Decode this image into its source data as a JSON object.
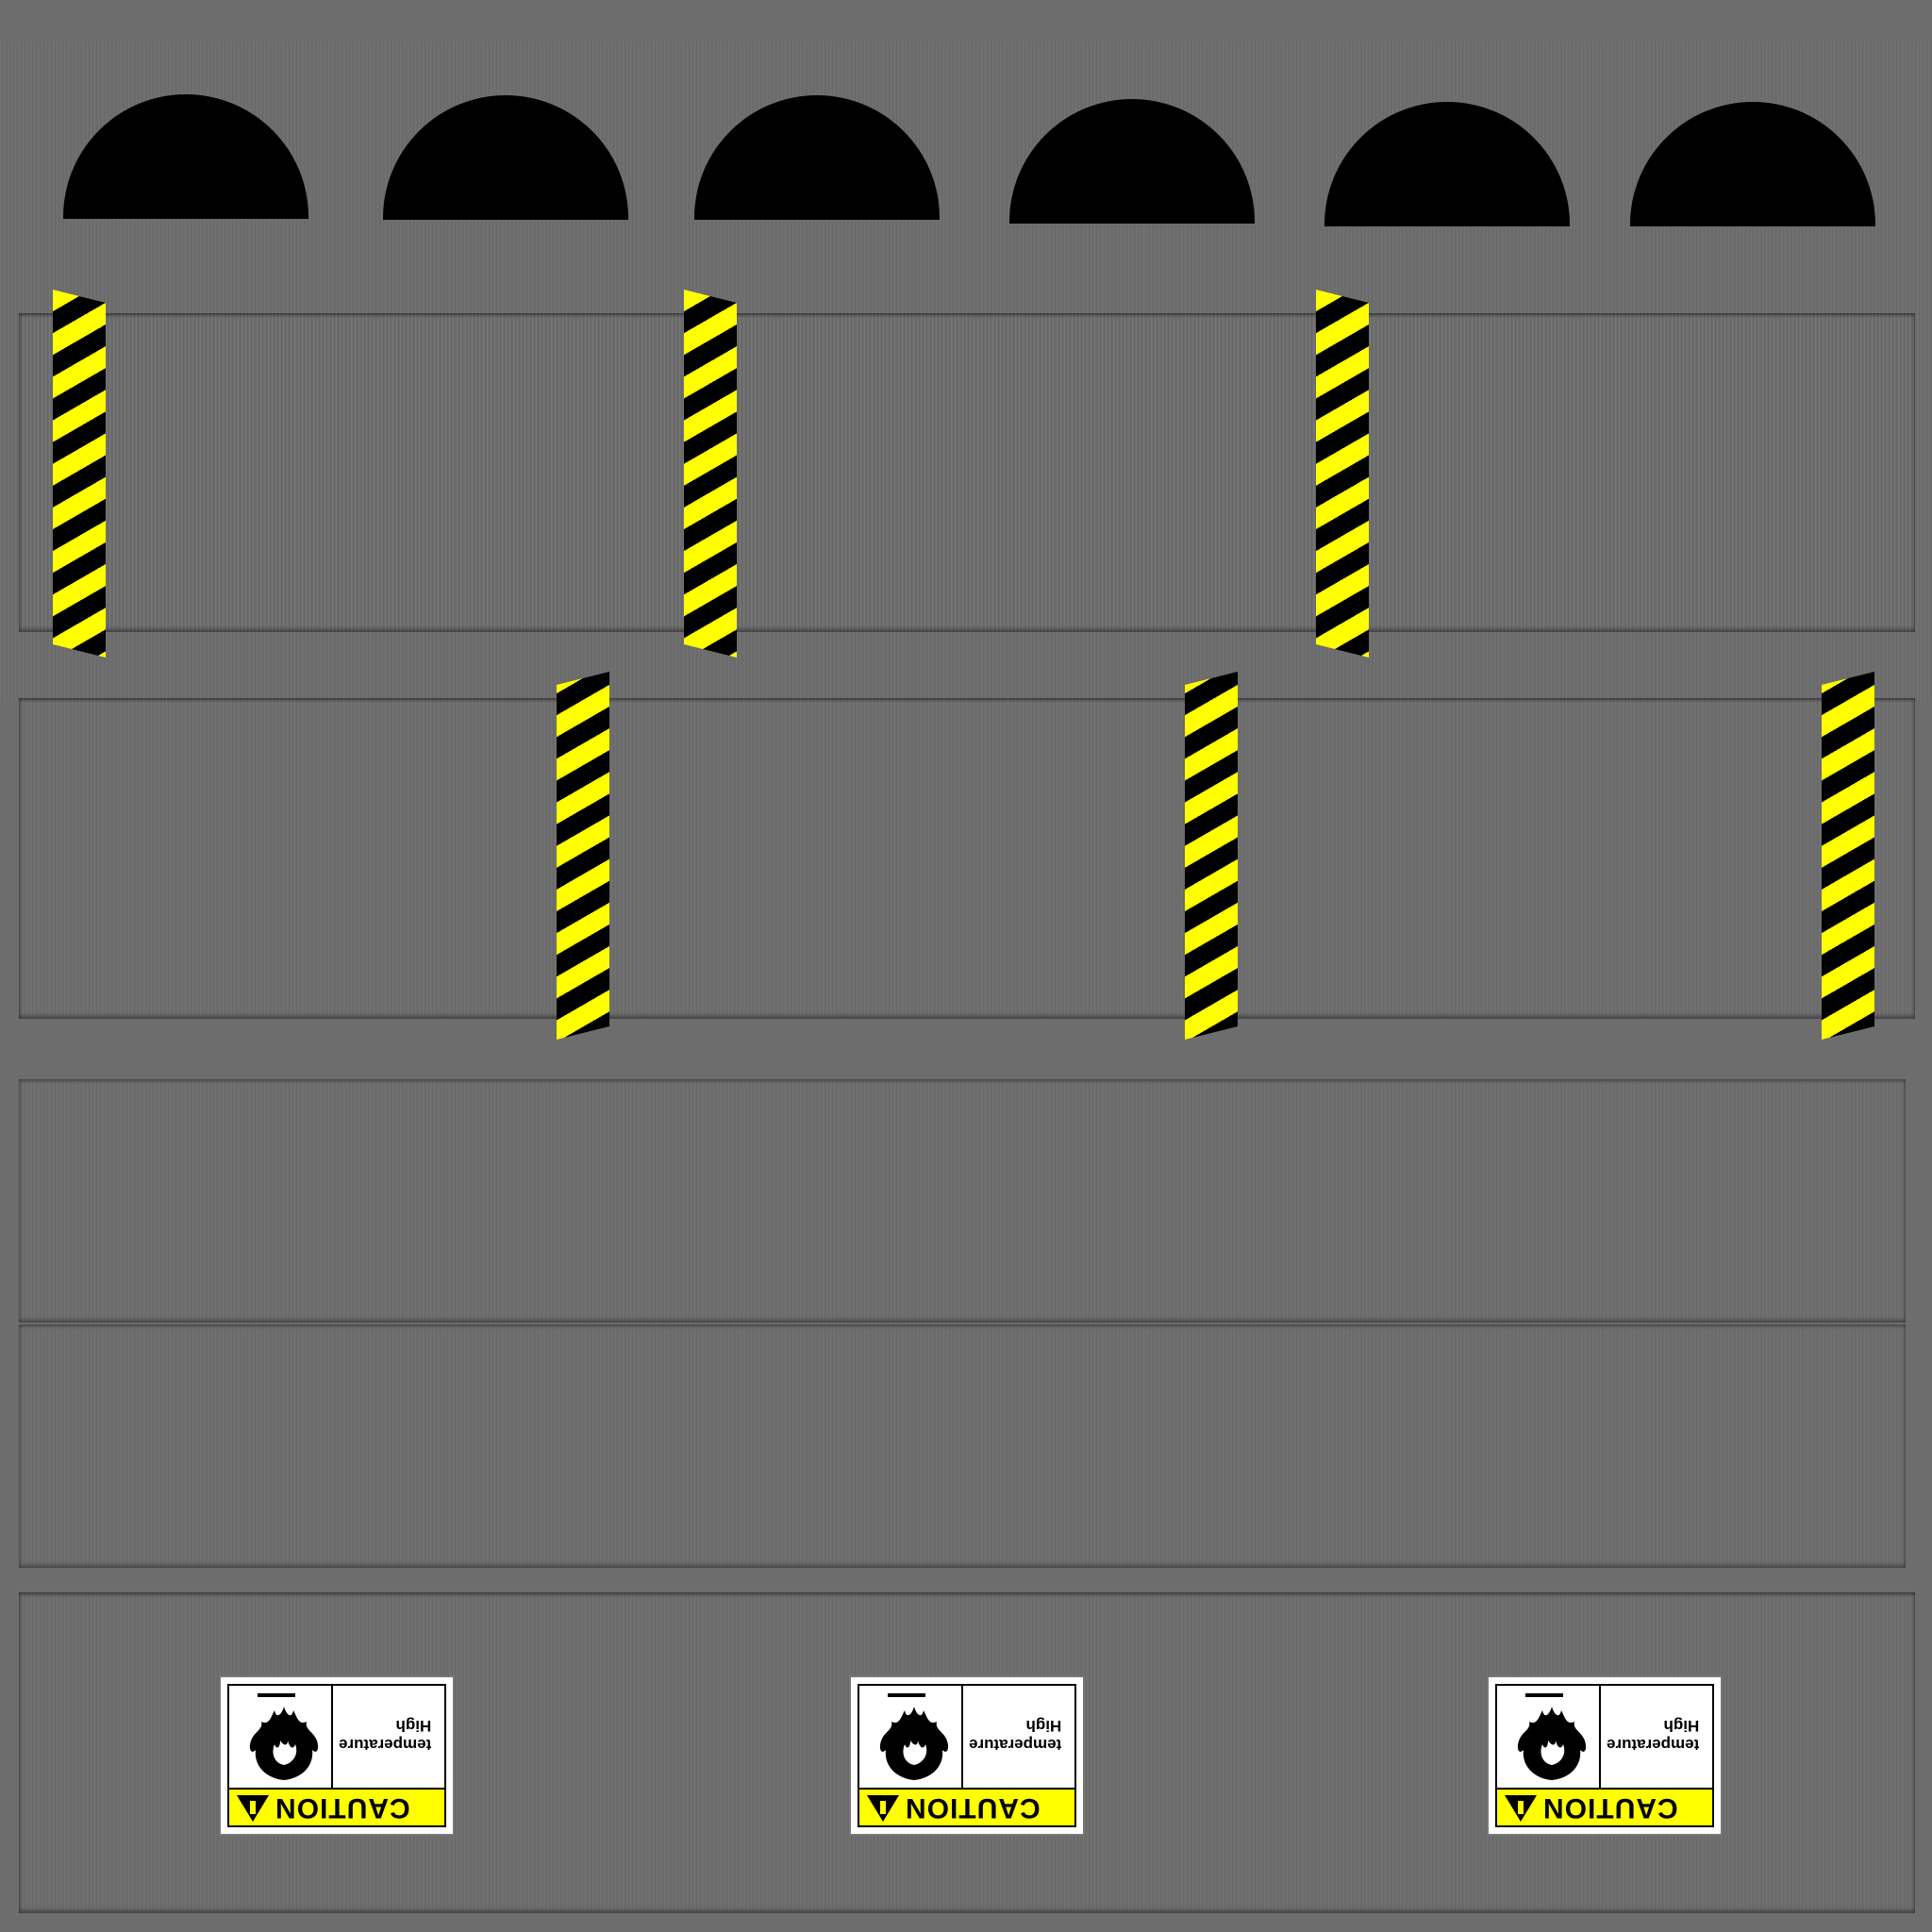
{
  "texture": {
    "warning_signs": [
      {
        "caution_label": "CAUTION",
        "line1": "High",
        "line2": "temperature"
      },
      {
        "caution_label": "CAUTION",
        "line1": "High",
        "line2": "temperature"
      },
      {
        "caution_label": "CAUTION",
        "line1": "High",
        "line2": "temperature"
      }
    ],
    "colors": {
      "background": "#6d6d6d",
      "hazard_yellow": "#ffff00",
      "hazard_black": "#000000"
    },
    "icons": [
      "fire-icon",
      "warning-triangle-icon"
    ]
  }
}
